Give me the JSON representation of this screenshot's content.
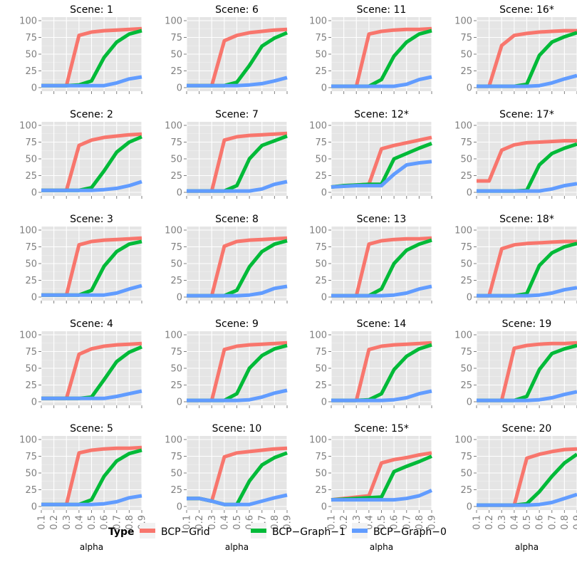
{
  "chart_data": {
    "type": "line",
    "facet_prefix": "Scene: ",
    "xlabel": "alpha",
    "x": [
      0.1,
      0.2,
      0.3,
      0.4,
      0.5,
      0.6,
      0.7,
      0.8,
      0.9
    ],
    "x_tick_labels": [
      "0.1",
      "0.2",
      "0.3",
      "0.4",
      "0.5",
      "0.6",
      "0.7",
      "0.8",
      "0.9"
    ],
    "ylim": [
      0,
      100
    ],
    "y_ticks": [
      0,
      25,
      50,
      75,
      100
    ],
    "grid": true,
    "legend": {
      "title": "Type",
      "position": "bottom",
      "entries": [
        {
          "name": "BCP−Grid",
          "color": "#f8766d"
        },
        {
          "name": "BCP−Graph−1",
          "color": "#00ba38"
        },
        {
          "name": "BCP−Graph−0",
          "color": "#619cff"
        }
      ]
    },
    "panels": [
      {
        "scene": "1",
        "series": [
          [
            3,
            3,
            3,
            78,
            83,
            85,
            86,
            87,
            88
          ],
          [
            3,
            3,
            3,
            4,
            10,
            45,
            68,
            80,
            85
          ],
          [
            3,
            3,
            3,
            3,
            3,
            3,
            7,
            13,
            16
          ]
        ]
      },
      {
        "scene": "6",
        "series": [
          [
            3,
            3,
            3,
            70,
            78,
            82,
            84,
            86,
            87
          ],
          [
            3,
            3,
            3,
            3,
            8,
            33,
            62,
            74,
            82
          ],
          [
            3,
            3,
            3,
            3,
            3,
            4,
            6,
            10,
            15
          ]
        ]
      },
      {
        "scene": "11",
        "series": [
          [
            2,
            2,
            2,
            80,
            84,
            86,
            87,
            87,
            88
          ],
          [
            2,
            2,
            2,
            2,
            12,
            47,
            68,
            80,
            85
          ],
          [
            2,
            2,
            2,
            2,
            2,
            2,
            5,
            12,
            16
          ]
        ]
      },
      {
        "scene": "16*",
        "series": [
          [
            2,
            2,
            63,
            78,
            81,
            83,
            84,
            85,
            85
          ],
          [
            2,
            2,
            2,
            2,
            5,
            48,
            68,
            76,
            82
          ],
          [
            2,
            2,
            2,
            2,
            2,
            3,
            7,
            13,
            18
          ]
        ]
      },
      {
        "scene": "2",
        "series": [
          [
            3,
            3,
            3,
            70,
            78,
            82,
            84,
            86,
            87
          ],
          [
            3,
            3,
            3,
            3,
            7,
            32,
            60,
            75,
            83
          ],
          [
            3,
            3,
            3,
            3,
            3,
            4,
            6,
            10,
            16
          ]
        ]
      },
      {
        "scene": "7",
        "series": [
          [
            2,
            2,
            2,
            78,
            83,
            85,
            86,
            87,
            88
          ],
          [
            2,
            2,
            2,
            2,
            10,
            50,
            70,
            77,
            84
          ],
          [
            2,
            2,
            2,
            2,
            2,
            2,
            5,
            12,
            16
          ]
        ]
      },
      {
        "scene": "12*",
        "series": [
          [
            8,
            10,
            11,
            12,
            65,
            70,
            74,
            78,
            82
          ],
          [
            8,
            10,
            11,
            12,
            12,
            50,
            58,
            66,
            73
          ],
          [
            8,
            9,
            10,
            10,
            10,
            27,
            41,
            44,
            46
          ]
        ]
      },
      {
        "scene": "17*",
        "series": [
          [
            17,
            17,
            63,
            71,
            74,
            75,
            76,
            77,
            77
          ],
          [
            2,
            2,
            2,
            2,
            3,
            41,
            58,
            66,
            72
          ],
          [
            2,
            2,
            2,
            2,
            2,
            2,
            5,
            10,
            13
          ]
        ]
      },
      {
        "scene": "3",
        "series": [
          [
            3,
            3,
            3,
            78,
            83,
            85,
            86,
            87,
            88
          ],
          [
            3,
            3,
            3,
            3,
            10,
            46,
            68,
            79,
            83
          ],
          [
            3,
            3,
            3,
            3,
            3,
            3,
            6,
            12,
            17
          ]
        ]
      },
      {
        "scene": "8",
        "series": [
          [
            2,
            2,
            2,
            76,
            83,
            85,
            86,
            87,
            88
          ],
          [
            2,
            2,
            2,
            2,
            10,
            45,
            68,
            79,
            84
          ],
          [
            2,
            2,
            2,
            2,
            2,
            3,
            6,
            13,
            16
          ]
        ]
      },
      {
        "scene": "13",
        "series": [
          [
            2,
            2,
            2,
            79,
            84,
            86,
            87,
            87,
            88
          ],
          [
            2,
            2,
            2,
            2,
            12,
            50,
            70,
            79,
            85
          ],
          [
            2,
            2,
            2,
            2,
            2,
            3,
            6,
            12,
            16
          ]
        ]
      },
      {
        "scene": "18*",
        "series": [
          [
            2,
            2,
            72,
            78,
            80,
            81,
            82,
            83,
            83
          ],
          [
            2,
            2,
            2,
            2,
            5,
            47,
            66,
            75,
            80
          ],
          [
            2,
            2,
            2,
            2,
            2,
            3,
            6,
            11,
            14
          ]
        ]
      },
      {
        "scene": "4",
        "series": [
          [
            5,
            5,
            5,
            71,
            79,
            83,
            85,
            86,
            87
          ],
          [
            5,
            5,
            5,
            5,
            7,
            33,
            60,
            74,
            82
          ],
          [
            5,
            5,
            5,
            5,
            5,
            5,
            8,
            12,
            16
          ]
        ]
      },
      {
        "scene": "9",
        "series": [
          [
            2,
            2,
            2,
            78,
            83,
            85,
            86,
            87,
            88
          ],
          [
            2,
            2,
            2,
            2,
            12,
            50,
            69,
            79,
            84
          ],
          [
            2,
            2,
            2,
            2,
            2,
            3,
            7,
            13,
            17
          ]
        ]
      },
      {
        "scene": "14",
        "series": [
          [
            2,
            2,
            2,
            78,
            83,
            85,
            86,
            87,
            88
          ],
          [
            2,
            2,
            2,
            3,
            12,
            48,
            68,
            79,
            85
          ],
          [
            2,
            2,
            2,
            2,
            2,
            3,
            6,
            12,
            16
          ]
        ]
      },
      {
        "scene": "19",
        "series": [
          [
            2,
            2,
            2,
            80,
            84,
            86,
            87,
            87,
            88
          ],
          [
            2,
            2,
            2,
            2,
            8,
            48,
            72,
            79,
            84
          ],
          [
            2,
            2,
            2,
            2,
            2,
            3,
            6,
            11,
            15
          ]
        ]
      },
      {
        "scene": "5",
        "series": [
          [
            3,
            3,
            3,
            80,
            84,
            86,
            87,
            87,
            88
          ],
          [
            3,
            3,
            3,
            3,
            10,
            45,
            68,
            79,
            84
          ],
          [
            3,
            3,
            3,
            3,
            3,
            4,
            7,
            13,
            16
          ]
        ]
      },
      {
        "scene": "10",
        "series": [
          [
            12,
            12,
            8,
            74,
            80,
            82,
            84,
            86,
            87
          ],
          [
            12,
            12,
            8,
            3,
            3,
            38,
            62,
            73,
            80
          ],
          [
            12,
            12,
            8,
            3,
            3,
            3,
            8,
            13,
            17
          ]
        ]
      },
      {
        "scene": "15*",
        "series": [
          [
            10,
            12,
            14,
            16,
            65,
            70,
            73,
            77,
            80
          ],
          [
            10,
            11,
            12,
            13,
            14,
            52,
            60,
            67,
            75
          ],
          [
            10,
            10,
            10,
            10,
            10,
            10,
            12,
            16,
            24
          ]
        ]
      },
      {
        "scene": "20",
        "series": [
          [
            2,
            2,
            2,
            2,
            72,
            78,
            82,
            85,
            86
          ],
          [
            2,
            2,
            2,
            2,
            4,
            22,
            45,
            65,
            78
          ],
          [
            2,
            2,
            2,
            2,
            2,
            3,
            6,
            12,
            18
          ]
        ]
      }
    ]
  }
}
